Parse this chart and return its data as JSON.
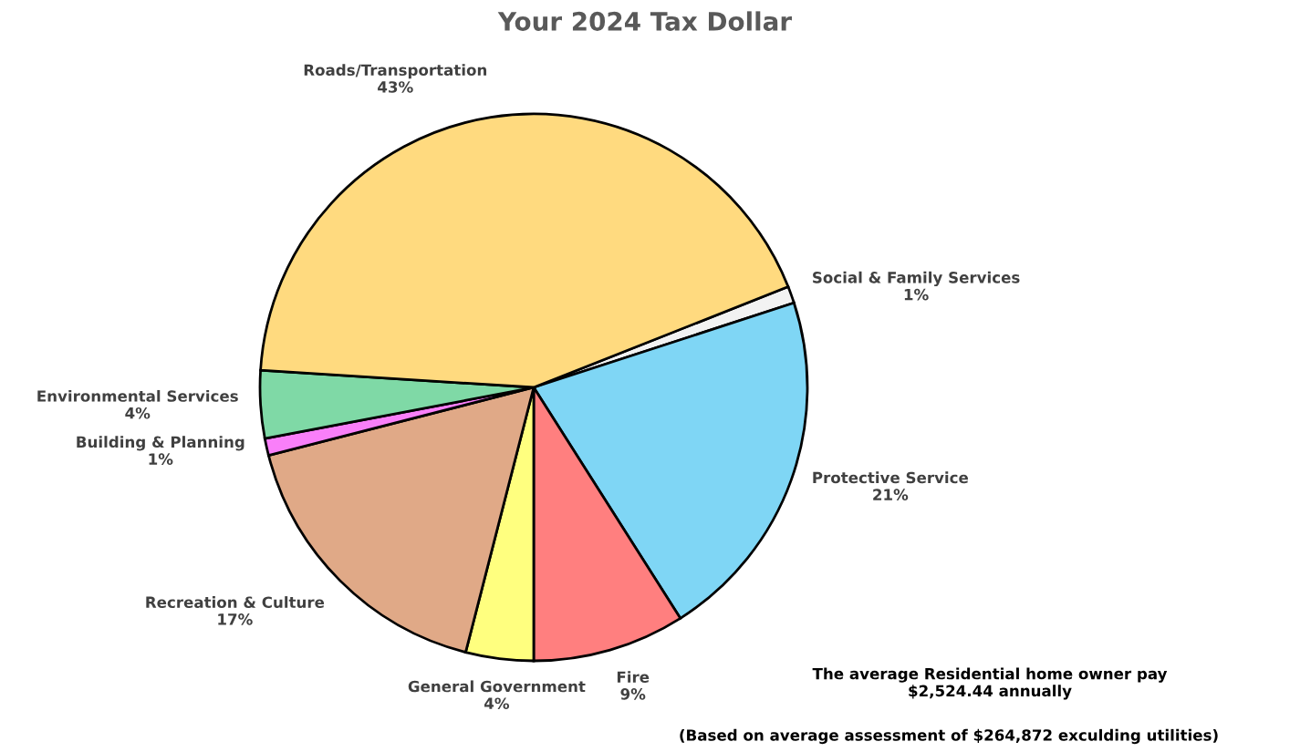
{
  "chart_data": {
    "type": "pie",
    "title": "Your 2024 Tax Dollar",
    "categories": [
      "Social & Family Services",
      "Protective Service",
      "Fire",
      "General Government",
      "Recreation & Culture",
      "Building & Planning",
      "Environmental Services",
      "Roads/Transportation"
    ],
    "values": [
      1,
      21,
      9,
      4,
      17,
      1,
      4,
      43
    ],
    "colors": [
      "#f2f2f2",
      "#7fd6f5",
      "#ff7f7f",
      "#ffff7f",
      "#e0a987",
      "#f97ff9",
      "#7fd9a6",
      "#ffda7f"
    ],
    "value_labels": [
      "1%",
      "21%",
      "9%",
      "4%",
      "17%",
      "1%",
      "4%",
      "43%"
    ],
    "annotations": [
      "The average Residential home owner pay\n$2,524.44 annually",
      "(Based on average assessment of $264,872 exculding utilities)"
    ]
  }
}
